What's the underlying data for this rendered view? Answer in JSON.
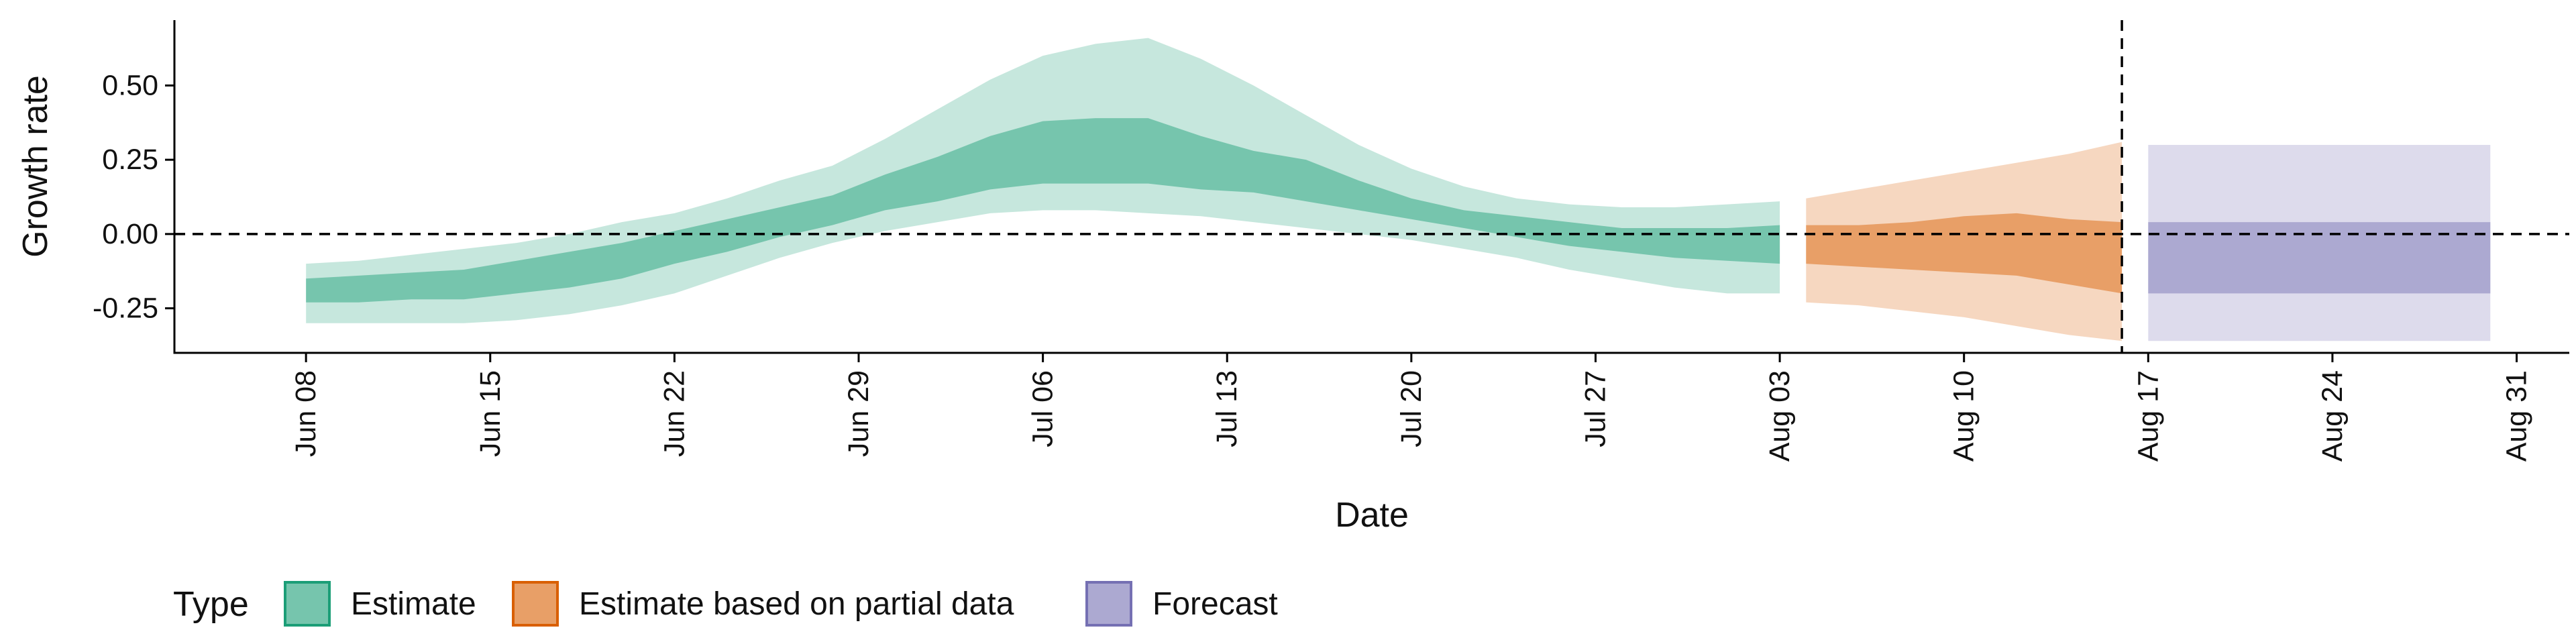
{
  "chart_data": {
    "type": "area",
    "xlabel": "Date",
    "ylabel": "Growth rate",
    "xlim": [
      "2020-06-03",
      "2020-09-02"
    ],
    "ylim": [
      -0.4,
      0.72
    ],
    "x_ticks": [
      "2020-06-08",
      "2020-06-15",
      "2020-06-22",
      "2020-06-29",
      "2020-07-06",
      "2020-07-13",
      "2020-07-20",
      "2020-07-27",
      "2020-08-03",
      "2020-08-10",
      "2020-08-17",
      "2020-08-24",
      "2020-08-31"
    ],
    "x_tick_labels": [
      "Jun 08",
      "Jun 15",
      "Jun 22",
      "Jun 29",
      "Jul 06",
      "Jul 13",
      "Jul 20",
      "Jul 27",
      "Aug 03",
      "Aug 10",
      "Aug 17",
      "Aug 24",
      "Aug 31"
    ],
    "y_ticks": [
      -0.25,
      0.0,
      0.25,
      0.5
    ],
    "y_tick_labels": [
      "-0.25",
      "0.00",
      "0.25",
      "0.50"
    ],
    "reference_lines": {
      "horizontal_y": 0,
      "vertical_x": "2020-08-16"
    },
    "grid": false,
    "legend": {
      "title": "Type",
      "position": "bottom-left"
    },
    "series": [
      {
        "name": "Estimate",
        "color": "#1b9e77",
        "x": [
          "2020-06-08",
          "2020-06-10",
          "2020-06-12",
          "2020-06-14",
          "2020-06-16",
          "2020-06-18",
          "2020-06-20",
          "2020-06-22",
          "2020-06-24",
          "2020-06-26",
          "2020-06-28",
          "2020-06-30",
          "2020-07-02",
          "2020-07-04",
          "2020-07-06",
          "2020-07-08",
          "2020-07-10",
          "2020-07-12",
          "2020-07-14",
          "2020-07-16",
          "2020-07-18",
          "2020-07-20",
          "2020-07-22",
          "2020-07-24",
          "2020-07-26",
          "2020-07-28",
          "2020-07-30",
          "2020-08-01",
          "2020-08-03"
        ],
        "lower_90": [
          -0.3,
          -0.3,
          -0.3,
          -0.3,
          -0.29,
          -0.27,
          -0.24,
          -0.2,
          -0.14,
          -0.08,
          -0.03,
          0.01,
          0.04,
          0.07,
          0.08,
          0.08,
          0.07,
          0.06,
          0.04,
          0.02,
          0.0,
          -0.02,
          -0.05,
          -0.08,
          -0.12,
          -0.15,
          -0.18,
          -0.2,
          -0.2
        ],
        "lower_50": [
          -0.23,
          -0.23,
          -0.22,
          -0.22,
          -0.2,
          -0.18,
          -0.15,
          -0.1,
          -0.06,
          -0.01,
          0.03,
          0.08,
          0.11,
          0.15,
          0.17,
          0.17,
          0.17,
          0.15,
          0.14,
          0.11,
          0.08,
          0.05,
          0.02,
          -0.01,
          -0.04,
          -0.06,
          -0.08,
          -0.09,
          -0.1
        ],
        "upper_50": [
          -0.15,
          -0.14,
          -0.13,
          -0.12,
          -0.09,
          -0.06,
          -0.03,
          0.01,
          0.05,
          0.09,
          0.13,
          0.2,
          0.26,
          0.33,
          0.38,
          0.39,
          0.39,
          0.33,
          0.28,
          0.25,
          0.18,
          0.12,
          0.08,
          0.06,
          0.04,
          0.02,
          0.02,
          0.02,
          0.03
        ],
        "upper_90": [
          -0.1,
          -0.09,
          -0.07,
          -0.05,
          -0.03,
          0.0,
          0.04,
          0.07,
          0.12,
          0.18,
          0.23,
          0.32,
          0.42,
          0.52,
          0.6,
          0.64,
          0.66,
          0.59,
          0.5,
          0.4,
          0.3,
          0.22,
          0.16,
          0.12,
          0.1,
          0.09,
          0.09,
          0.1,
          0.11
        ]
      },
      {
        "name": "Estimate based on partial data",
        "color": "#d95f02",
        "x": [
          "2020-08-04",
          "2020-08-06",
          "2020-08-08",
          "2020-08-10",
          "2020-08-12",
          "2020-08-14",
          "2020-08-16"
        ],
        "lower_90": [
          -0.23,
          -0.24,
          -0.26,
          -0.28,
          -0.31,
          -0.34,
          -0.36
        ],
        "lower_50": [
          -0.1,
          -0.11,
          -0.12,
          -0.13,
          -0.14,
          -0.17,
          -0.2
        ],
        "upper_50": [
          0.03,
          0.03,
          0.04,
          0.06,
          0.07,
          0.05,
          0.04
        ],
        "upper_90": [
          0.12,
          0.15,
          0.18,
          0.21,
          0.24,
          0.27,
          0.31
        ]
      },
      {
        "name": "Forecast",
        "color": "#7570b3",
        "x": [
          "2020-08-17",
          "2020-08-30"
        ],
        "lower_90": [
          -0.36,
          -0.36
        ],
        "lower_50": [
          -0.2,
          -0.2
        ],
        "upper_50": [
          0.04,
          0.04
        ],
        "upper_90": [
          0.3,
          0.3
        ]
      }
    ]
  }
}
